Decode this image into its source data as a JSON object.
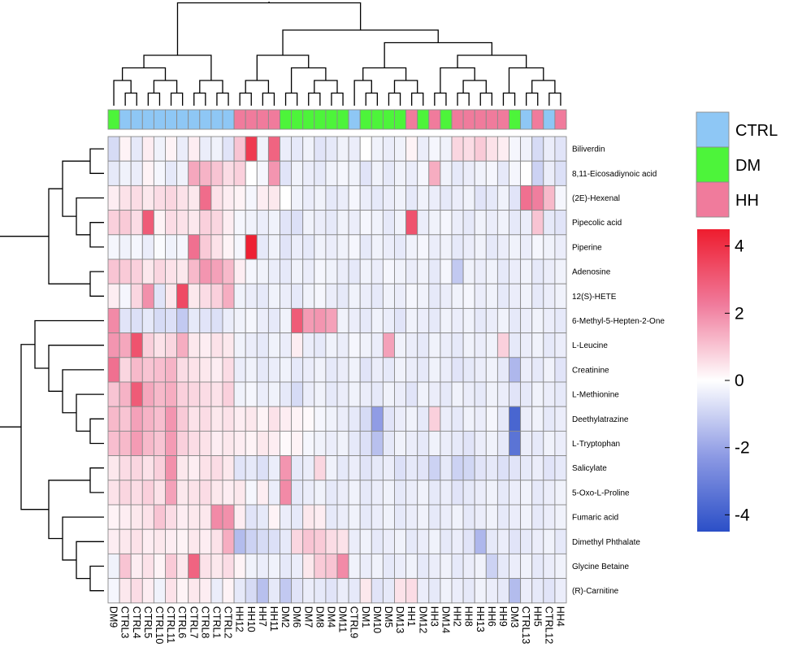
{
  "chart_data": {
    "type": "heatmap",
    "title": "",
    "xlabel": "",
    "ylabel": "",
    "colorscale": {
      "min": -4.5,
      "max": 4.5,
      "low": "#2b4fc7",
      "mid": "#ffffff",
      "high": "#ee1c2e",
      "ticks": [
        4,
        2,
        0,
        -2,
        -4
      ],
      "tick_labels": [
        "4",
        "2",
        "0",
        "-2",
        "-4"
      ]
    },
    "group_colors": {
      "CTRL": "#8ec7f5",
      "DM": "#4df43a",
      "HH": "#f07b9c"
    },
    "group_legend": [
      "CTRL",
      "DM",
      "HH"
    ],
    "columns": [
      "DM9",
      "CTRL3",
      "CTRL4",
      "CTRL5",
      "CTRL10",
      "CTRL11",
      "CTRL6",
      "CTRL7",
      "CTRL8",
      "CTRL1",
      "CTRL2",
      "HH12",
      "HH10",
      "HH7",
      "HH11",
      "DM2",
      "DM6",
      "DM7",
      "DM8",
      "DM4",
      "DM11",
      "CTRL9",
      "DM1",
      "DM10",
      "DM5",
      "DM13",
      "HH1",
      "DM12",
      "HH3",
      "DM14",
      "HH2",
      "HH8",
      "HH13",
      "HH6",
      "HH9",
      "DM3",
      "CTRL13",
      "HH5",
      "CTRL12",
      "HH4"
    ],
    "column_groups": [
      "DM",
      "CTRL",
      "CTRL",
      "CTRL",
      "CTRL",
      "CTRL",
      "CTRL",
      "CTRL",
      "CTRL",
      "CTRL",
      "CTRL",
      "HH",
      "HH",
      "HH",
      "HH",
      "DM",
      "DM",
      "DM",
      "DM",
      "DM",
      "DM",
      "CTRL",
      "DM",
      "DM",
      "DM",
      "DM",
      "HH",
      "DM",
      "HH",
      "DM",
      "HH",
      "HH",
      "HH",
      "HH",
      "HH",
      "DM",
      "CTRL",
      "HH",
      "CTRL",
      "HH"
    ],
    "rows": [
      "Biliverdin",
      "8,11-Eicosadiynoic acid",
      "(2E)-Hexenal",
      "Pipecolic acid",
      "Piperine",
      "Adenosine",
      "12(S)-HETE",
      "6-Methyl-5-Hepten-2-One",
      "L-Leucine",
      "Creatinine",
      "L-Methionine",
      "Deethylatrazine",
      "L-Tryptophan",
      "Salicylate",
      "5-Oxo-L-Proline",
      "Fumaric acid",
      "Dimethyl Phthalate",
      "Glycine Betaine",
      "(R)-Carnitine"
    ],
    "values": [
      [
        -0.8,
        0.2,
        -0.5,
        0.3,
        -0.3,
        0.2,
        -0.4,
        0.3,
        -0.4,
        -0.3,
        -0.6,
        1.0,
        3.8,
        -0.3,
        2.8,
        -0.4,
        -0.5,
        -0.3,
        -0.6,
        -0.5,
        -0.3,
        -0.4,
        0.0,
        -0.3,
        -0.4,
        -0.3,
        0.2,
        -0.4,
        -0.2,
        -0.3,
        0.7,
        0.6,
        0.9,
        0.5,
        0.3,
        -0.2,
        -0.3,
        -0.8,
        -0.4,
        -0.6
      ],
      [
        -0.5,
        -0.3,
        -0.4,
        0.2,
        -0.2,
        -0.5,
        -0.3,
        1.5,
        1.3,
        1.0,
        0.6,
        0.8,
        0.0,
        -0.2,
        1.8,
        -0.6,
        -0.3,
        -0.4,
        -0.5,
        -0.3,
        -0.2,
        -0.3,
        -0.6,
        -0.3,
        -0.5,
        -0.3,
        -0.4,
        -0.2,
        1.4,
        -0.3,
        -0.5,
        -0.4,
        -0.3,
        -0.2,
        -0.5,
        -0.2,
        0.0,
        -1.0,
        -0.4,
        -0.7
      ],
      [
        0.3,
        0.5,
        0.6,
        0.4,
        0.6,
        0.7,
        0.5,
        0.4,
        2.6,
        0.5,
        0.3,
        0.2,
        -0.2,
        0.3,
        0.4,
        0.0,
        -0.3,
        -0.4,
        -0.3,
        -0.5,
        -0.4,
        -0.2,
        -0.4,
        -0.5,
        -0.4,
        -0.3,
        -0.5,
        -0.3,
        -0.4,
        -0.5,
        -0.4,
        -0.3,
        -0.6,
        -0.5,
        -0.3,
        -0.6,
        2.5,
        2.2,
        1.2,
        -0.2
      ],
      [
        0.8,
        0.9,
        0.6,
        3.0,
        0.2,
        0.6,
        0.5,
        0.4,
        0.8,
        0.7,
        0.3,
        -0.2,
        -0.3,
        -0.4,
        -0.3,
        -0.6,
        -0.7,
        -0.3,
        -0.4,
        -0.5,
        -0.3,
        -0.4,
        -0.2,
        -0.3,
        -0.5,
        -0.3,
        3.2,
        -0.4,
        -0.3,
        -0.2,
        -0.4,
        -0.5,
        -0.3,
        -0.4,
        -0.3,
        -0.5,
        -0.4,
        1.0,
        -0.5,
        -0.6
      ],
      [
        -0.2,
        -0.3,
        -0.2,
        -0.4,
        -0.1,
        -0.3,
        -0.2,
        2.5,
        0.9,
        0.5,
        0.2,
        -0.2,
        4.4,
        -0.5,
        -0.3,
        -0.6,
        -0.4,
        -0.5,
        -0.3,
        -0.4,
        -0.3,
        -0.2,
        -0.5,
        -0.3,
        -0.4,
        -0.5,
        -0.3,
        -0.2,
        -0.4,
        -0.3,
        -0.5,
        -0.4,
        -0.3,
        -0.5,
        -0.4,
        -0.3,
        -0.4,
        -0.2,
        -0.3,
        -0.4
      ],
      [
        1.0,
        0.9,
        0.8,
        0.4,
        0.7,
        0.5,
        0.4,
        1.2,
        1.8,
        1.6,
        1.2,
        0.3,
        -0.2,
        -0.3,
        -0.4,
        -0.5,
        -0.3,
        -0.4,
        -0.2,
        -0.3,
        -0.4,
        -0.5,
        -0.3,
        -0.4,
        -0.2,
        -0.3,
        -0.4,
        -0.3,
        -0.5,
        -0.2,
        -1.2,
        -0.3,
        -0.4,
        -0.3,
        -0.5,
        -0.4,
        -0.3,
        -0.5,
        -0.4,
        -0.3
      ],
      [
        0.3,
        -0.2,
        0.7,
        1.9,
        -0.6,
        0.4,
        3.4,
        0.4,
        0.6,
        0.8,
        1.4,
        -0.3,
        -0.4,
        -0.5,
        -0.3,
        -0.4,
        -0.5,
        -0.3,
        -0.2,
        -0.4,
        -0.5,
        -0.3,
        -0.4,
        -0.5,
        -0.3,
        -0.4,
        -0.2,
        -0.3,
        -0.5,
        -0.4,
        -0.3,
        -0.2,
        -0.4,
        -0.3,
        -0.5,
        -0.4,
        -0.3,
        -0.5,
        -0.4,
        -0.3
      ],
      [
        2.0,
        -0.6,
        -0.7,
        -0.5,
        -0.8,
        -0.7,
        -1.2,
        -0.5,
        -0.6,
        -0.7,
        -0.4,
        -0.3,
        -0.2,
        -0.4,
        -0.5,
        -0.3,
        3.0,
        1.7,
        1.8,
        1.6,
        -0.3,
        -0.4,
        -0.5,
        -0.3,
        -0.4,
        -0.6,
        -0.3,
        -0.4,
        -0.5,
        -0.3,
        -0.4,
        -0.3,
        -0.5,
        -0.4,
        -0.3,
        -0.5,
        -0.4,
        -0.3,
        -0.4,
        -0.5
      ],
      [
        1.8,
        1.5,
        3.2,
        0.8,
        0.5,
        0.7,
        1.4,
        0.4,
        0.3,
        0.5,
        0.4,
        -0.3,
        -0.4,
        -0.5,
        -0.3,
        -0.4,
        0.3,
        -0.4,
        -0.5,
        -0.3,
        -0.4,
        -0.2,
        -0.3,
        -0.4,
        1.6,
        -0.3,
        -0.4,
        -0.5,
        -0.3,
        -0.4,
        -0.5,
        -0.3,
        -0.4,
        -0.3,
        0.8,
        -0.5,
        -0.4,
        -0.3,
        -0.5,
        -0.4
      ],
      [
        2.5,
        0.7,
        1.2,
        1.0,
        1.1,
        1.3,
        0.6,
        0.5,
        0.4,
        0.3,
        0.6,
        -0.4,
        -0.3,
        -0.5,
        -0.4,
        -0.3,
        -0.5,
        -0.4,
        -0.3,
        -0.5,
        -0.4,
        -0.3,
        -0.6,
        -0.4,
        -0.5,
        -0.3,
        -0.4,
        -0.5,
        -0.3,
        -0.4,
        -0.6,
        -0.5,
        -0.4,
        -0.3,
        -0.5,
        -1.6,
        -0.4,
        -0.5,
        -0.3,
        -0.6
      ],
      [
        1.0,
        1.3,
        3.0,
        1.5,
        1.2,
        1.4,
        0.8,
        0.7,
        0.6,
        0.5,
        0.8,
        -0.3,
        -0.2,
        -0.4,
        -0.3,
        -0.5,
        -0.8,
        -0.4,
        -0.3,
        -0.5,
        -0.4,
        -0.3,
        -0.4,
        -0.5,
        -0.3,
        -0.4,
        -0.6,
        -0.3,
        -0.4,
        -0.5,
        -0.3,
        -0.4,
        -0.5,
        -0.3,
        -0.4,
        -0.6,
        -0.5,
        -0.3,
        -0.4,
        -0.5
      ],
      [
        1.2,
        1.0,
        1.6,
        1.3,
        1.1,
        1.8,
        0.9,
        0.5,
        0.6,
        0.4,
        0.5,
        0.3,
        0.4,
        0.2,
        0.5,
        0.3,
        0.2,
        0.1,
        -0.2,
        -0.3,
        -0.4,
        -0.5,
        -0.8,
        -2.2,
        -0.6,
        -0.4,
        -0.3,
        -0.5,
        0.8,
        -0.4,
        -0.5,
        -0.3,
        -0.4,
        -0.2,
        -0.5,
        -3.8,
        -0.4,
        -0.3,
        -0.5,
        -0.4
      ],
      [
        1.1,
        1.2,
        1.7,
        1.2,
        1.0,
        1.7,
        0.8,
        0.6,
        0.5,
        0.3,
        0.4,
        0.3,
        0.2,
        0.4,
        0.3,
        0.1,
        0.2,
        -0.2,
        -0.3,
        -0.4,
        -0.3,
        -0.5,
        -0.7,
        -1.4,
        -0.5,
        -0.3,
        -0.4,
        -0.5,
        -0.3,
        -0.4,
        -0.5,
        -0.6,
        -0.4,
        -0.3,
        -0.5,
        -3.4,
        -0.4,
        -0.5,
        -0.3,
        -0.4
      ],
      [
        0.4,
        0.6,
        0.7,
        0.5,
        0.8,
        1.9,
        0.4,
        0.3,
        0.5,
        0.6,
        0.4,
        -0.6,
        -0.5,
        -0.7,
        -0.4,
        1.8,
        -0.5,
        -0.4,
        0.7,
        -0.3,
        -0.5,
        -0.4,
        -0.6,
        -0.5,
        -0.4,
        -0.7,
        -0.5,
        -0.6,
        -1.0,
        -0.5,
        -1.0,
        -0.9,
        -0.6,
        -0.5,
        -0.7,
        -0.6,
        -0.5,
        -0.4,
        -0.6,
        -0.5
      ],
      [
        0.5,
        0.7,
        0.6,
        0.8,
        0.5,
        1.6,
        0.4,
        0.5,
        0.6,
        0.4,
        0.3,
        0.4,
        -0.2,
        0.3,
        -0.4,
        2.0,
        -0.5,
        -0.4,
        -0.3,
        -0.5,
        -0.4,
        -0.3,
        -0.5,
        -0.4,
        -0.3,
        -0.5,
        -0.4,
        -0.3,
        -0.5,
        -0.4,
        -0.6,
        -0.5,
        -0.4,
        -0.3,
        -0.5,
        -0.4,
        -0.3,
        -0.5,
        -0.4,
        -0.3
      ],
      [
        0.2,
        0.3,
        0.4,
        0.5,
        1.0,
        0.6,
        0.3,
        0.4,
        0.4,
        2.0,
        1.9,
        0.3,
        -0.6,
        -0.5,
        0.2,
        -0.4,
        -0.5,
        0.4,
        0.3,
        -0.5,
        -0.4,
        -0.3,
        -0.5,
        -0.4,
        -0.3,
        -0.5,
        -0.4,
        -0.3,
        -0.5,
        -0.4,
        -0.3,
        -0.5,
        -0.4,
        -0.3,
        -0.5,
        -0.4,
        -0.3,
        -0.5,
        -0.4,
        -0.3
      ],
      [
        0.3,
        0.4,
        0.5,
        0.3,
        0.4,
        0.3,
        0.2,
        0.4,
        0.3,
        0.5,
        1.4,
        -1.5,
        -1.0,
        -0.8,
        -0.7,
        -0.5,
        0.7,
        1.0,
        0.9,
        0.6,
        0.5,
        -0.4,
        -0.3,
        -0.5,
        -0.4,
        -0.3,
        -0.5,
        -0.4,
        -0.3,
        -0.5,
        -0.4,
        -0.6,
        -1.6,
        -0.5,
        -0.4,
        -0.6,
        -0.5,
        -0.4,
        -0.3,
        -0.5
      ],
      [
        -0.3,
        1.0,
        0.3,
        0.5,
        0.2,
        0.9,
        0.4,
        2.8,
        0.5,
        0.4,
        0.6,
        0.2,
        -0.3,
        -0.4,
        -0.3,
        -0.5,
        -0.4,
        0.4,
        0.9,
        1.0,
        2.0,
        -0.3,
        -0.4,
        -0.3,
        -0.5,
        -0.4,
        -0.3,
        -0.5,
        -0.4,
        -0.3,
        -0.5,
        -0.4,
        -0.3,
        -1.0,
        -0.5,
        -0.4,
        -0.3,
        -0.5,
        -0.4,
        -0.3
      ],
      [
        -0.2,
        0.4,
        0.6,
        0.3,
        -0.3,
        0.5,
        0.2,
        0.4,
        0.3,
        -0.4,
        0.2,
        -0.5,
        -0.8,
        -1.4,
        -0.5,
        -1.2,
        -0.6,
        -0.4,
        -0.5,
        -0.6,
        -0.4,
        -0.5,
        0.4,
        -0.6,
        -0.5,
        0.5,
        0.6,
        -0.4,
        -0.5,
        -0.3,
        -0.4,
        -0.5,
        -0.3,
        -0.4,
        -0.5,
        -1.5,
        -0.4,
        -0.5,
        -0.6,
        -0.4
      ]
    ],
    "grid": true,
    "legend": "right"
  }
}
